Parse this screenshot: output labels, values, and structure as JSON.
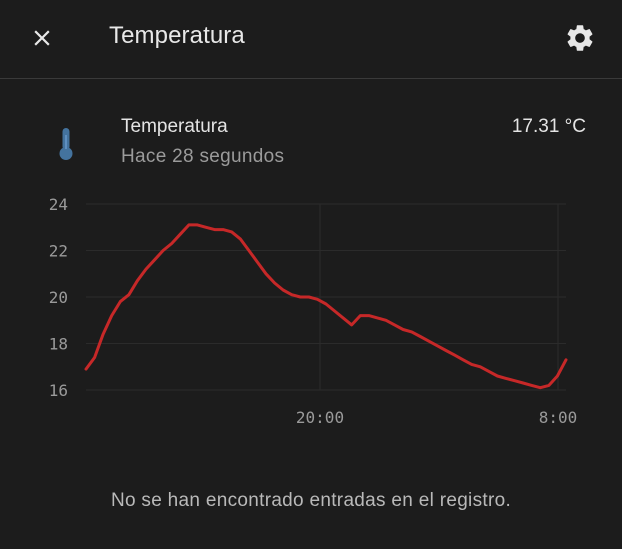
{
  "header": {
    "title": "Temperatura",
    "close_icon": "close-icon",
    "settings_icon": "gear-icon"
  },
  "entity": {
    "icon": "thermometer-icon",
    "name": "Temperatura",
    "last_changed": "Hace 28 segundos",
    "state": "17.31 °C"
  },
  "chart_data": {
    "type": "line",
    "title": "",
    "xlabel": "",
    "ylabel": "",
    "ylim": [
      16,
      24
    ],
    "yticks": [
      "16",
      "18",
      "20",
      "22",
      "24"
    ],
    "xticks": [
      "20:00",
      "8:00"
    ],
    "grid": true,
    "legend": "none",
    "color": "#c62828",
    "series": [
      {
        "values": [
          16.9,
          17.4,
          18.4,
          19.2,
          19.8,
          20.1,
          20.7,
          21.2,
          21.6,
          22.0,
          22.3,
          22.7,
          23.1,
          23.1,
          23.0,
          22.9,
          22.9,
          22.8,
          22.5,
          22.0,
          21.5,
          21.0,
          20.6,
          20.3,
          20.1,
          20.0,
          20.0,
          19.9,
          19.7,
          19.4,
          19.1,
          18.8,
          19.2,
          19.2,
          19.1,
          19.0,
          18.8,
          18.6,
          18.5,
          18.3,
          18.1,
          17.9,
          17.7,
          17.5,
          17.3,
          17.1,
          17.0,
          16.8,
          16.6,
          16.5,
          16.4,
          16.3,
          16.2,
          16.1,
          16.2,
          16.6,
          17.3
        ]
      }
    ]
  },
  "logbook": {
    "empty_message": "No se han encontrado entradas en el registro."
  }
}
